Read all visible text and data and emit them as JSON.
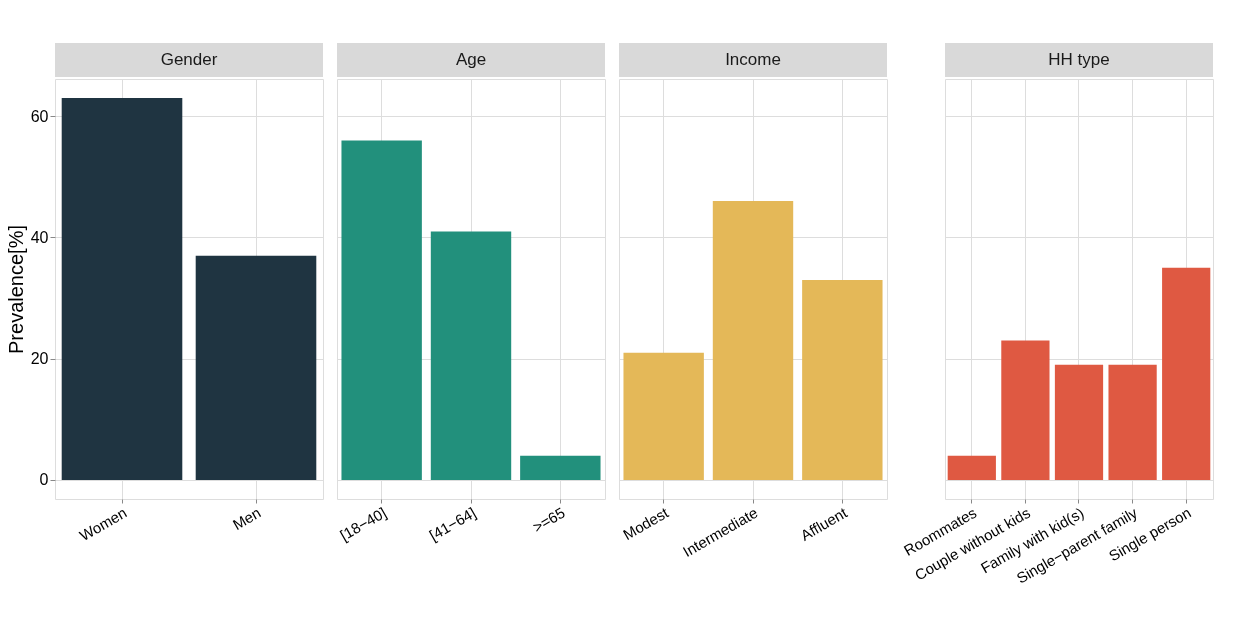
{
  "chart_data": [
    {
      "type": "bar",
      "title": "Gender",
      "ylabel": "Prevalence[%]",
      "categories": [
        "Women",
        "Men"
      ],
      "values": [
        63,
        37
      ],
      "color": "#1f3441",
      "ylim": [
        -3.15,
        66.15
      ],
      "yticks": [
        0,
        20,
        40,
        60
      ],
      "grid": true
    },
    {
      "type": "bar",
      "title": "Age",
      "categories": [
        "[18−40]",
        "[41−64]",
        ">=65"
      ],
      "values": [
        56,
        41,
        4
      ],
      "color": "#22907c",
      "ylim": [
        -3.15,
        66.15
      ],
      "yticks": [
        0,
        20,
        40,
        60
      ],
      "grid": true,
      "tick_labels": "x"
    },
    {
      "type": "bar",
      "title": "Income",
      "categories": [
        "Modest",
        "Intermediate",
        "Affluent"
      ],
      "values": [
        21,
        46,
        33
      ],
      "color": "#e4b858",
      "ylim": [
        -3.15,
        66.15
      ],
      "yticks": [
        0,
        20,
        40,
        60
      ],
      "grid": true,
      "tick_labels": "x"
    },
    {
      "type": "bar",
      "title": "HH type",
      "categories": [
        "Roommates",
        "Couple without kids",
        "Family with kid(s)",
        "Single−parent family",
        "Single person"
      ],
      "values": [
        4,
        23,
        19,
        19,
        35
      ],
      "color": "#df5942",
      "ylim": [
        -3.15,
        66.15
      ],
      "yticks": [
        0,
        20,
        40,
        60
      ],
      "grid": true,
      "tick_labels": "x"
    }
  ]
}
